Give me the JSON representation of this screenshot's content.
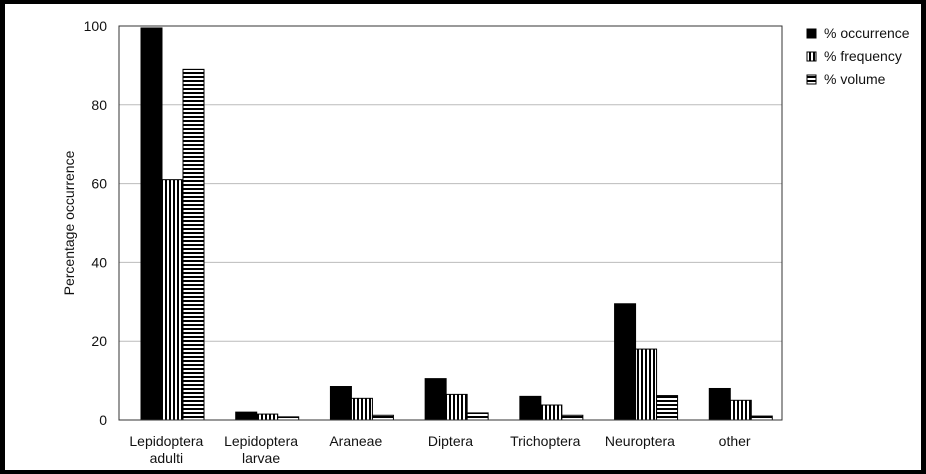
{
  "chart_data": {
    "type": "bar",
    "categories": [
      [
        "Lepidoptera",
        "adulti"
      ],
      [
        "Lepidoptera",
        "larvae"
      ],
      [
        "Araneae"
      ],
      [
        "Diptera"
      ],
      [
        "Trichoptera"
      ],
      [
        "Neuroptera"
      ],
      [
        "other"
      ]
    ],
    "series": [
      {
        "name": "% occurrence",
        "pattern": "solid",
        "values": [
          99.5,
          2,
          8.5,
          10.5,
          6,
          29.5,
          8
        ]
      },
      {
        "name": "% frequency",
        "pattern": "vertical-stripes",
        "values": [
          61,
          1.5,
          5.5,
          6.5,
          3.8,
          18,
          5
        ]
      },
      {
        "name": "% volume",
        "pattern": "horizontal-stripes",
        "values": [
          89,
          0.8,
          1.2,
          1.8,
          1.2,
          6.2,
          1
        ]
      }
    ],
    "xlabel": "",
    "ylabel": "Percentage occurrence",
    "ylim": [
      0,
      100
    ],
    "yticks": [
      0,
      20,
      40,
      60,
      80,
      100
    ],
    "grid": true,
    "legend_position": "top-right",
    "colors": {
      "bar": "#000000",
      "background": "#ffffff",
      "grid": "#bbbbbb"
    }
  }
}
